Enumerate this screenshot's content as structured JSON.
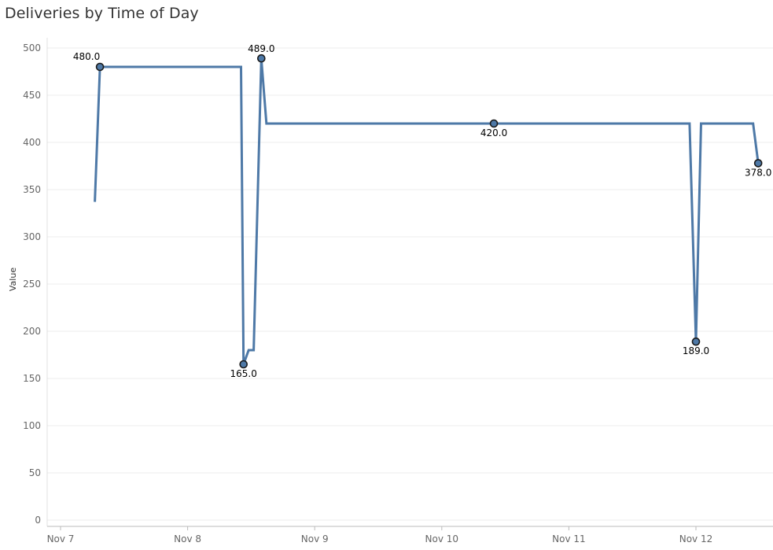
{
  "chart_data": {
    "type": "line",
    "title": "Deliveries by Time of Day",
    "ylabel": "Value",
    "xlabel": "",
    "ylim": [
      0,
      510
    ],
    "y_ticks": [
      0,
      50,
      100,
      150,
      200,
      250,
      300,
      350,
      400,
      450,
      500
    ],
    "x_ticks": [
      {
        "label": "Nov 7",
        "day": 7
      },
      {
        "label": "Nov 8",
        "day": 8
      },
      {
        "label": "Nov 9",
        "day": 9
      },
      {
        "label": "Nov 10",
        "day": 10
      },
      {
        "label": "Nov 11",
        "day": 11
      },
      {
        "label": "Nov 12",
        "day": 12
      }
    ],
    "grid": true,
    "line_color": "#4e79a7",
    "series": [
      {
        "points": [
          {
            "x": 7.27,
            "y": 337
          },
          {
            "x": 7.31,
            "y": 480
          },
          {
            "x": 8.42,
            "y": 480
          },
          {
            "x": 8.44,
            "y": 165
          },
          {
            "x": 8.48,
            "y": 180
          },
          {
            "x": 8.52,
            "y": 180
          },
          {
            "x": 8.58,
            "y": 489
          },
          {
            "x": 8.62,
            "y": 420
          },
          {
            "x": 11.95,
            "y": 420
          },
          {
            "x": 12.0,
            "y": 189
          },
          {
            "x": 12.04,
            "y": 420
          },
          {
            "x": 12.45,
            "y": 420
          },
          {
            "x": 12.49,
            "y": 378
          }
        ],
        "labels": [
          {
            "x": 7.31,
            "y": 480,
            "text": "480.0",
            "pos": "above-left"
          },
          {
            "x": 8.44,
            "y": 165,
            "text": "165.0",
            "pos": "below"
          },
          {
            "x": 8.58,
            "y": 489,
            "text": "489.0",
            "pos": "above"
          },
          {
            "x": 10.41,
            "y": 420,
            "text": "420.0",
            "pos": "below"
          },
          {
            "x": 12.0,
            "y": 189,
            "text": "189.0",
            "pos": "below"
          },
          {
            "x": 12.49,
            "y": 378,
            "text": "378.0",
            "pos": "below"
          }
        ]
      }
    ]
  }
}
